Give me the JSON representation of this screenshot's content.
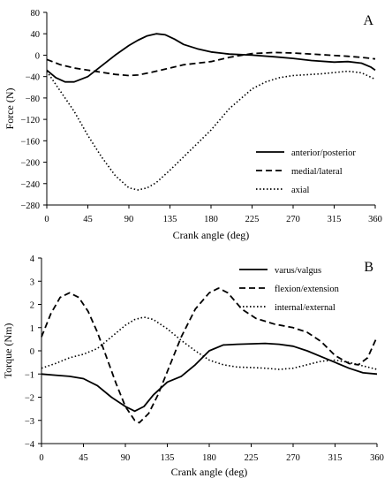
{
  "chart_data": [
    {
      "type": "line",
      "panel_label": "A",
      "xlabel": "Crank angle (deg)",
      "ylabel": "Force (N)",
      "xlim": [
        0,
        360
      ],
      "ylim": [
        -280,
        80
      ],
      "xticks": [
        0,
        45,
        90,
        135,
        180,
        225,
        270,
        315,
        360
      ],
      "yticks": [
        80,
        40,
        0,
        -40,
        -80,
        -120,
        -160,
        -200,
        -240,
        -280
      ],
      "ytick_labels": [
        "80",
        "40",
        "0",
        "−40",
        "−80",
        "−120",
        "−160",
        "−200",
        "−240",
        "−280"
      ],
      "grid": false,
      "legend_position": "bottom-right",
      "series": [
        {
          "name": "anterior/posterior",
          "style": "solid",
          "x": [
            0,
            10,
            20,
            30,
            45,
            60,
            75,
            90,
            100,
            110,
            120,
            130,
            140,
            150,
            165,
            180,
            200,
            225,
            250,
            270,
            290,
            315,
            330,
            345,
            355,
            360
          ],
          "y": [
            -28,
            -42,
            -50,
            -50,
            -40,
            -20,
            0,
            18,
            28,
            36,
            40,
            38,
            30,
            20,
            12,
            6,
            2,
            0,
            -3,
            -6,
            -10,
            -13,
            -12,
            -15,
            -22,
            -28
          ]
        },
        {
          "name": "medial/lateral",
          "style": "dashed",
          "x": [
            0,
            15,
            30,
            45,
            60,
            75,
            90,
            100,
            115,
            135,
            150,
            180,
            200,
            225,
            250,
            270,
            300,
            330,
            345,
            360
          ],
          "y": [
            -8,
            -18,
            -24,
            -28,
            -32,
            -36,
            -38,
            -37,
            -32,
            -24,
            -18,
            -12,
            -4,
            3,
            5,
            4,
            1,
            -2,
            -4,
            -7
          ]
        },
        {
          "name": "axial",
          "style": "dotted",
          "x": [
            0,
            10,
            20,
            30,
            45,
            60,
            75,
            90,
            100,
            110,
            120,
            135,
            150,
            165,
            180,
            200,
            225,
            240,
            255,
            270,
            300,
            330,
            345,
            360
          ],
          "y": [
            -30,
            -55,
            -80,
            -105,
            -150,
            -190,
            -225,
            -248,
            -252,
            -248,
            -238,
            -215,
            -190,
            -165,
            -140,
            -100,
            -63,
            -50,
            -42,
            -38,
            -35,
            -30,
            -33,
            -45
          ]
        }
      ]
    },
    {
      "type": "line",
      "panel_label": "B",
      "xlabel": "Crank angle (deg)",
      "ylabel": "Torque (Nm)",
      "xlim": [
        0,
        360
      ],
      "ylim": [
        -4,
        4
      ],
      "xticks": [
        0,
        45,
        90,
        135,
        180,
        225,
        270,
        315,
        360
      ],
      "yticks": [
        4,
        3,
        2,
        1,
        0,
        -1,
        -2,
        -3,
        -4
      ],
      "ytick_labels": [
        "4",
        "3",
        "2",
        "1",
        "0",
        "−1",
        "−2",
        "−3",
        "−4"
      ],
      "grid": false,
      "legend_position": "top-right",
      "series": [
        {
          "name": "varus/valgus",
          "style": "solid",
          "x": [
            0,
            15,
            30,
            45,
            60,
            75,
            90,
            100,
            110,
            120,
            135,
            150,
            165,
            180,
            195,
            210,
            225,
            240,
            255,
            270,
            285,
            300,
            315,
            330,
            345,
            360
          ],
          "y": [
            -1.0,
            -1.05,
            -1.1,
            -1.2,
            -1.5,
            -2.0,
            -2.4,
            -2.6,
            -2.4,
            -1.9,
            -1.35,
            -1.1,
            -0.6,
            0.0,
            0.25,
            0.28,
            0.3,
            0.32,
            0.28,
            0.2,
            0.0,
            -0.25,
            -0.5,
            -0.75,
            -0.95,
            -1.0
          ]
        },
        {
          "name": "flexion/extension",
          "style": "dashed",
          "x": [
            0,
            10,
            20,
            30,
            40,
            50,
            60,
            70,
            80,
            90,
            100,
            105,
            115,
            125,
            135,
            150,
            165,
            180,
            190,
            200,
            215,
            230,
            250,
            270,
            285,
            300,
            315,
            330,
            340,
            350,
            360
          ],
          "y": [
            0.6,
            1.6,
            2.3,
            2.5,
            2.3,
            1.7,
            0.8,
            -0.3,
            -1.4,
            -2.4,
            -3.0,
            -3.1,
            -2.7,
            -1.9,
            -0.9,
            0.6,
            1.8,
            2.5,
            2.7,
            2.5,
            1.8,
            1.4,
            1.15,
            1.0,
            0.8,
            0.4,
            -0.2,
            -0.55,
            -0.6,
            -0.3,
            0.6
          ]
        },
        {
          "name": "internal/external",
          "style": "dotted",
          "x": [
            0,
            15,
            30,
            45,
            60,
            75,
            90,
            100,
            110,
            120,
            135,
            150,
            165,
            180,
            195,
            210,
            225,
            240,
            255,
            270,
            285,
            300,
            315,
            330,
            345,
            360
          ],
          "y": [
            -0.75,
            -0.55,
            -0.3,
            -0.15,
            0.1,
            0.6,
            1.1,
            1.35,
            1.45,
            1.35,
            0.95,
            0.45,
            0.0,
            -0.4,
            -0.6,
            -0.7,
            -0.72,
            -0.75,
            -0.8,
            -0.75,
            -0.6,
            -0.45,
            -0.4,
            -0.5,
            -0.65,
            -0.8
          ]
        }
      ]
    }
  ]
}
